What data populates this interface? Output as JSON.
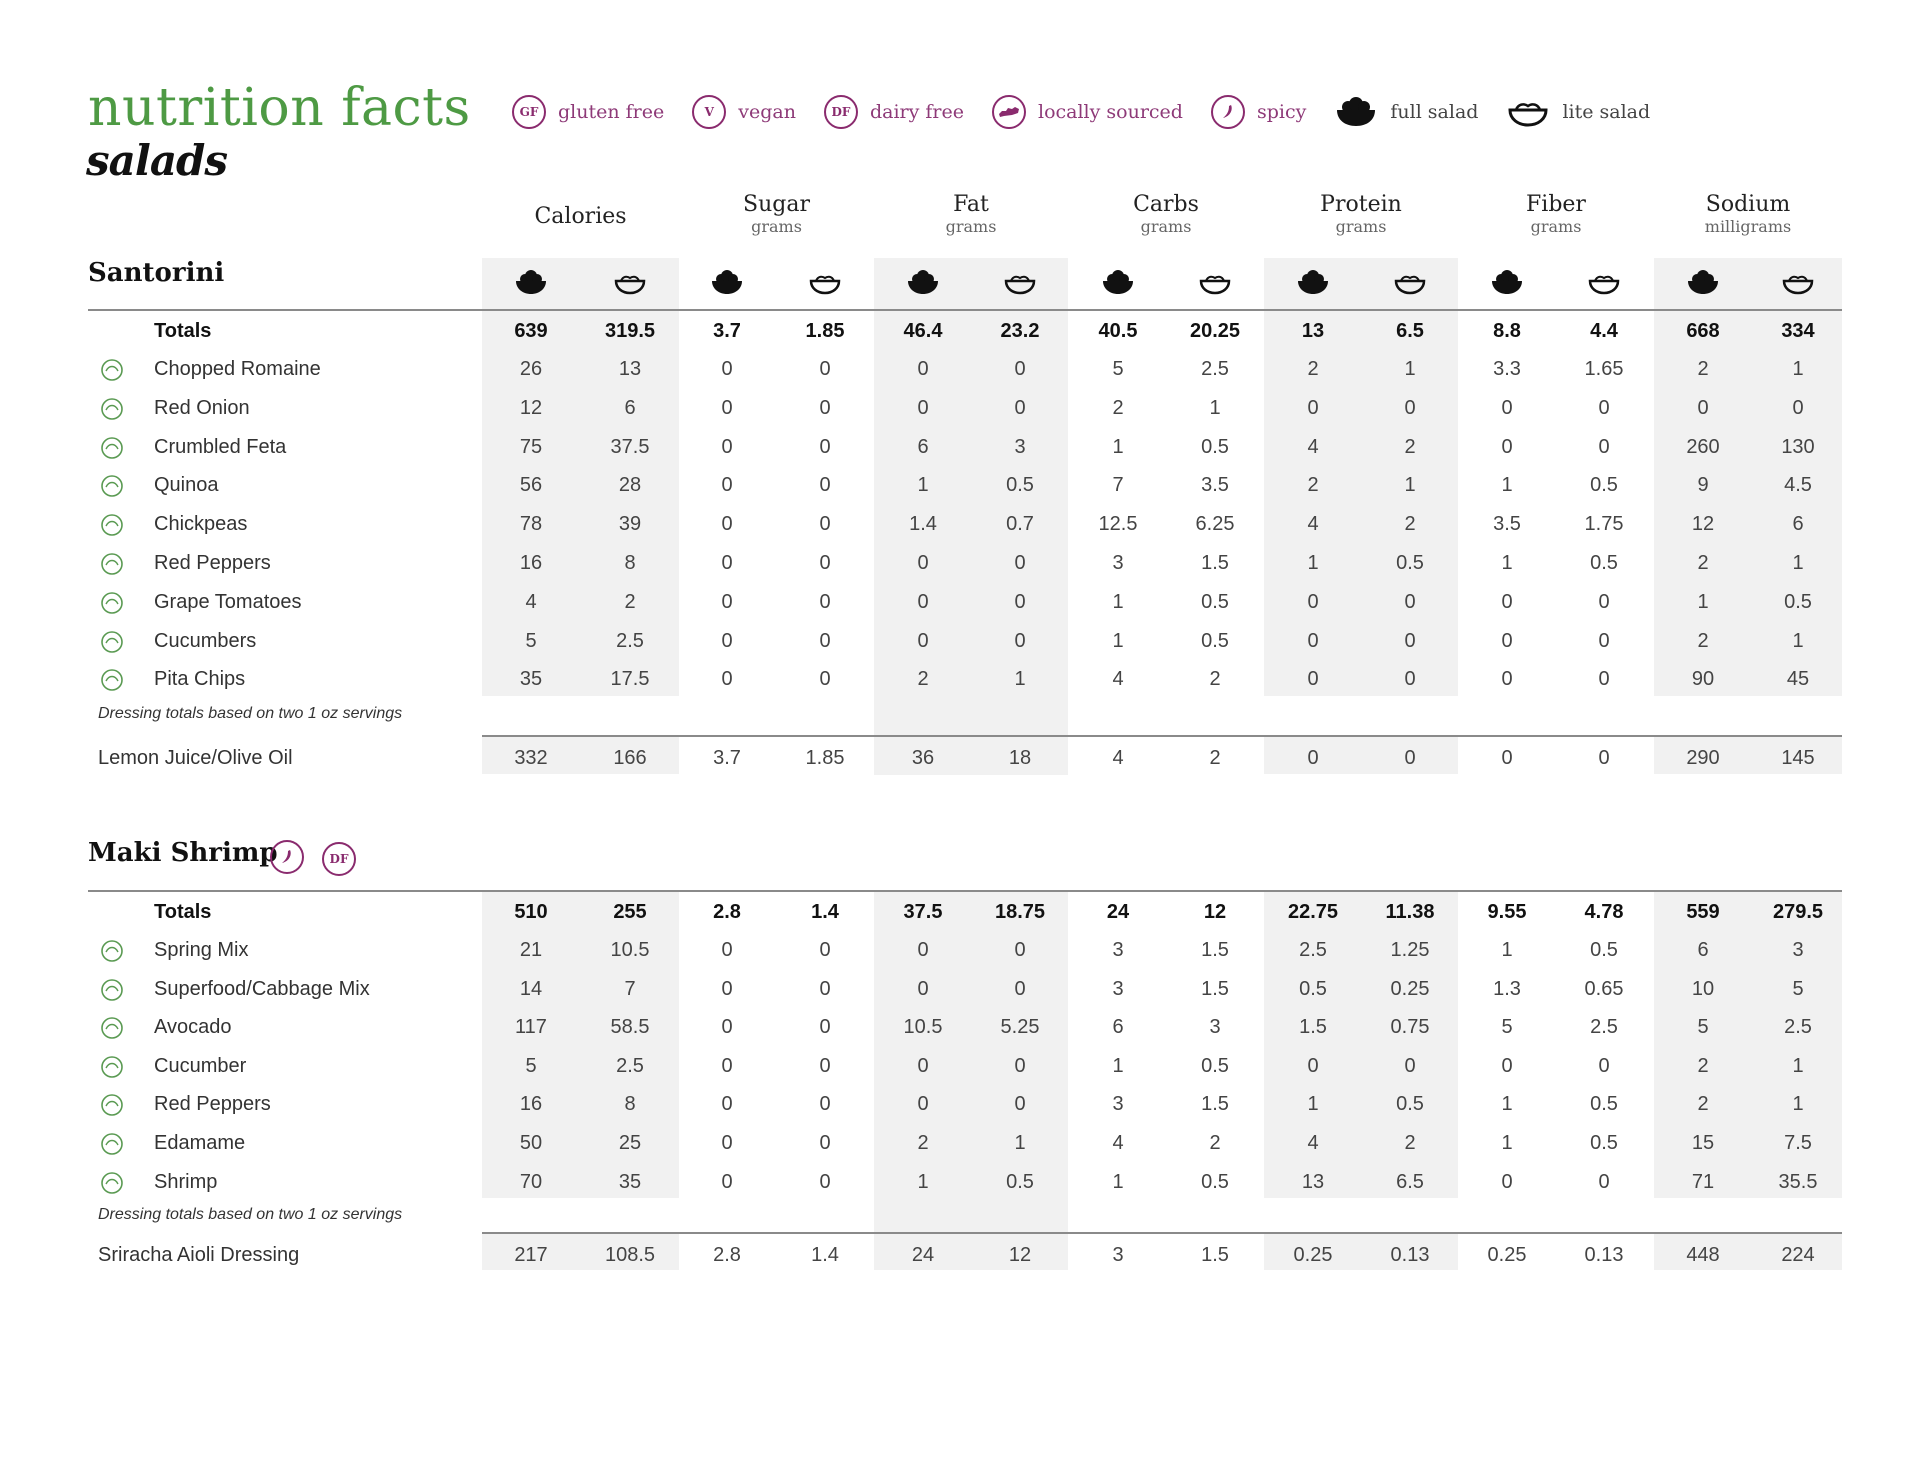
{
  "header": {
    "title": "nutrition facts",
    "subtitle": "salads"
  },
  "legend": [
    {
      "badge": "GF",
      "label": "gluten free",
      "icon": "gluten-free-icon"
    },
    {
      "badge": "V",
      "label": "vegan",
      "icon": "vegan-icon"
    },
    {
      "badge": "DF",
      "label": "dairy free",
      "icon": "dairy-free-icon"
    },
    {
      "badge": "",
      "label": "locally sourced",
      "icon": "kentucky-state-icon"
    },
    {
      "badge": "",
      "label": "spicy",
      "icon": "pepper-icon"
    },
    {
      "badge": "",
      "label": "full salad",
      "icon": "full-salad-bowl-icon"
    },
    {
      "badge": "",
      "label": "lite salad",
      "icon": "lite-salad-bowl-icon"
    }
  ],
  "columns": [
    {
      "name": "Calories",
      "unit": ""
    },
    {
      "name": "Sugar",
      "unit": "grams"
    },
    {
      "name": "Fat",
      "unit": "grams"
    },
    {
      "name": "Carbs",
      "unit": "grams"
    },
    {
      "name": "Protein",
      "unit": "grams"
    },
    {
      "name": "Fiber",
      "unit": "grams"
    },
    {
      "name": "Sodium",
      "unit": "milligrams"
    }
  ],
  "sections": [
    {
      "title": "Santorini",
      "badges": [],
      "totals": {
        "label": "Totals",
        "values": [
          "639",
          "319.5",
          "3.7",
          "1.85",
          "46.4",
          "23.2",
          "40.5",
          "20.25",
          "13",
          "6.5",
          "8.8",
          "4.4",
          "668",
          "334"
        ]
      },
      "items": [
        {
          "name": "Chopped Romaine",
          "icon": "romaine-icon",
          "values": [
            "26",
            "13",
            "0",
            "0",
            "0",
            "0",
            "5",
            "2.5",
            "2",
            "1",
            "3.3",
            "1.65",
            "2",
            "1"
          ]
        },
        {
          "name": "Red Onion",
          "icon": "onion-icon",
          "values": [
            "12",
            "6",
            "0",
            "0",
            "0",
            "0",
            "2",
            "1",
            "0",
            "0",
            "0",
            "0",
            "0",
            "0"
          ]
        },
        {
          "name": "Crumbled Feta",
          "icon": "feta-icon",
          "values": [
            "75",
            "37.5",
            "0",
            "0",
            "6",
            "3",
            "1",
            "0.5",
            "4",
            "2",
            "0",
            "0",
            "260",
            "130"
          ]
        },
        {
          "name": "Quinoa",
          "icon": "quinoa-icon",
          "values": [
            "56",
            "28",
            "0",
            "0",
            "1",
            "0.5",
            "7",
            "3.5",
            "2",
            "1",
            "1",
            "0.5",
            "9",
            "4.5"
          ]
        },
        {
          "name": "Chickpeas",
          "icon": "chickpeas-icon",
          "values": [
            "78",
            "39",
            "0",
            "0",
            "1.4",
            "0.7",
            "12.5",
            "6.25",
            "4",
            "2",
            "3.5",
            "1.75",
            "12",
            "6"
          ]
        },
        {
          "name": "Red Peppers",
          "icon": "pepper-bell-icon",
          "values": [
            "16",
            "8",
            "0",
            "0",
            "0",
            "0",
            "3",
            "1.5",
            "1",
            "0.5",
            "1",
            "0.5",
            "2",
            "1"
          ]
        },
        {
          "name": "Grape Tomatoes",
          "icon": "tomato-icon",
          "values": [
            "4",
            "2",
            "0",
            "0",
            "0",
            "0",
            "1",
            "0.5",
            "0",
            "0",
            "0",
            "0",
            "1",
            "0.5"
          ]
        },
        {
          "name": "Cucumbers",
          "icon": "cucumber-icon",
          "values": [
            "5",
            "2.5",
            "0",
            "0",
            "0",
            "0",
            "1",
            "0.5",
            "0",
            "0",
            "0",
            "0",
            "2",
            "1"
          ]
        },
        {
          "name": "Pita Chips",
          "icon": "pita-chips-icon",
          "values": [
            "35",
            "17.5",
            "0",
            "0",
            "2",
            "1",
            "4",
            "2",
            "0",
            "0",
            "0",
            "0",
            "90",
            "45"
          ]
        }
      ],
      "note": "Dressing totals based on two 1 oz servings",
      "dressing": {
        "name": "Lemon Juice/Olive Oil",
        "values": [
          "332",
          "166",
          "3.7",
          "1.85",
          "36",
          "18",
          "4",
          "2",
          "0",
          "0",
          "0",
          "0",
          "290",
          "145"
        ]
      }
    },
    {
      "title": "Maki Shrimp",
      "badges": [
        "spicy",
        "DF"
      ],
      "totals": {
        "label": "Totals",
        "values": [
          "510",
          "255",
          "2.8",
          "1.4",
          "37.5",
          "18.75",
          "24",
          "12",
          "22.75",
          "11.38",
          "9.55",
          "4.78",
          "559",
          "279.5"
        ]
      },
      "items": [
        {
          "name": "Spring Mix",
          "icon": "spring-mix-icon",
          "values": [
            "21",
            "10.5",
            "0",
            "0",
            "0",
            "0",
            "3",
            "1.5",
            "2.5",
            "1.25",
            "1",
            "0.5",
            "6",
            "3"
          ]
        },
        {
          "name": "Superfood/Cabbage Mix",
          "icon": "cabbage-icon",
          "values": [
            "14",
            "7",
            "0",
            "0",
            "0",
            "0",
            "3",
            "1.5",
            "0.5",
            "0.25",
            "1.3",
            "0.65",
            "10",
            "5"
          ]
        },
        {
          "name": "Avocado",
          "icon": "avocado-icon",
          "values": [
            "117",
            "58.5",
            "0",
            "0",
            "10.5",
            "5.25",
            "6",
            "3",
            "1.5",
            "0.75",
            "5",
            "2.5",
            "5",
            "2.5"
          ]
        },
        {
          "name": "Cucumber",
          "icon": "cucumber-icon",
          "values": [
            "5",
            "2.5",
            "0",
            "0",
            "0",
            "0",
            "1",
            "0.5",
            "0",
            "0",
            "0",
            "0",
            "2",
            "1"
          ]
        },
        {
          "name": "Red Peppers",
          "icon": "pepper-bell-icon",
          "values": [
            "16",
            "8",
            "0",
            "0",
            "0",
            "0",
            "3",
            "1.5",
            "1",
            "0.5",
            "1",
            "0.5",
            "2",
            "1"
          ]
        },
        {
          "name": "Edamame",
          "icon": "edamame-icon",
          "values": [
            "50",
            "25",
            "0",
            "0",
            "2",
            "1",
            "4",
            "2",
            "4",
            "2",
            "1",
            "0.5",
            "15",
            "7.5"
          ]
        },
        {
          "name": "Shrimp",
          "icon": "shrimp-icon",
          "values": [
            "70",
            "35",
            "0",
            "0",
            "1",
            "0.5",
            "1",
            "0.5",
            "13",
            "6.5",
            "0",
            "0",
            "71",
            "35.5"
          ]
        }
      ],
      "note": "Dressing totals based on two 1 oz servings",
      "dressing": {
        "name": "Sriracha Aioli Dressing",
        "values": [
          "217",
          "108.5",
          "2.8",
          "1.4",
          "24",
          "12",
          "3",
          "1.5",
          "0.25",
          "0.13",
          "0.25",
          "0.13",
          "448",
          "224"
        ]
      }
    }
  ],
  "colors": {
    "title_green": "#4e9a44",
    "accent_plum": "#8a2b6e",
    "band_gray": "#f1f1f1"
  }
}
